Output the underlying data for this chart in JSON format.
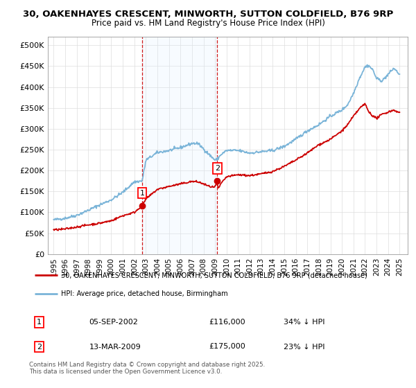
{
  "title_line1": "30, OAKENHAYES CRESCENT, MINWORTH, SUTTON COLDFIELD, B76 9RP",
  "title_line2": "Price paid vs. HM Land Registry's House Price Index (HPI)",
  "sale1_date": "05-SEP-2002",
  "sale1_price": 116000,
  "sale1_x": 2002.68,
  "sale2_date": "13-MAR-2009",
  "sale2_price": 175000,
  "sale2_x": 2009.19,
  "hpi_color": "#7ab4d8",
  "price_color": "#cc0000",
  "vline_color": "#cc0000",
  "shade_color": "#ddeeff",
  "legend_label_price": "30, OAKENHAYES CRESCENT, MINWORTH, SUTTON COLDFIELD, B76 9RP (detached house)",
  "legend_label_hpi": "HPI: Average price, detached house, Birmingham",
  "footer": "Contains HM Land Registry data © Crown copyright and database right 2025.\nThis data is licensed under the Open Government Licence v3.0.",
  "ylim": [
    0,
    520000
  ],
  "xlim_start": 1994.5,
  "xlim_end": 2025.7,
  "yticks": [
    0,
    50000,
    100000,
    150000,
    200000,
    250000,
    300000,
    350000,
    400000,
    450000,
    500000
  ],
  "ytick_labels": [
    "£0",
    "£50K",
    "£100K",
    "£150K",
    "£200K",
    "£250K",
    "£300K",
    "£350K",
    "£400K",
    "£450K",
    "£500K"
  ],
  "xticks": [
    1995,
    1996,
    1997,
    1998,
    1999,
    2000,
    2001,
    2002,
    2003,
    2004,
    2005,
    2006,
    2007,
    2008,
    2009,
    2010,
    2011,
    2012,
    2013,
    2014,
    2015,
    2016,
    2017,
    2018,
    2019,
    2020,
    2021,
    2022,
    2023,
    2024,
    2025
  ],
  "background_color": "#ffffff",
  "grid_color": "#dddddd",
  "hpi_keypoints_x": [
    1995,
    1996,
    1997,
    1998,
    1999,
    2000,
    2001,
    2002,
    2002.68,
    2003,
    2004,
    2005,
    2006,
    2007,
    2007.5,
    2008,
    2008.5,
    2009,
    2009.19,
    2009.5,
    2010,
    2011,
    2012,
    2013,
    2014,
    2015,
    2016,
    2017,
    2018,
    2019,
    2020,
    2020.5,
    2021,
    2021.5,
    2022,
    2022.3,
    2022.7,
    2023,
    2023.5,
    2024,
    2024.5,
    2025
  ],
  "hpi_keypoints_y": [
    82000,
    86000,
    93000,
    105000,
    118000,
    130000,
    148000,
    173000,
    175000,
    225000,
    243000,
    248000,
    255000,
    265000,
    265000,
    252000,
    238000,
    225000,
    227000,
    238000,
    248000,
    248000,
    242000,
    245000,
    248000,
    258000,
    275000,
    295000,
    310000,
    330000,
    345000,
    358000,
    385000,
    420000,
    448000,
    452000,
    440000,
    420000,
    415000,
    430000,
    445000,
    430000
  ],
  "price_keypoints_x": [
    1995,
    1996,
    1997,
    1998,
    1999,
    2000,
    2001,
    2002,
    2002.3,
    2002.68,
    2003,
    2004,
    2005,
    2006,
    2007,
    2007.5,
    2008,
    2008.5,
    2009,
    2009.19,
    2009.25,
    2009.5,
    2010,
    2011,
    2012,
    2013,
    2014,
    2015,
    2016,
    2017,
    2018,
    2018.5,
    2019,
    2020,
    2020.5,
    2021,
    2021.5,
    2022,
    2022.3,
    2022.7,
    2023,
    2023.5,
    2024,
    2024.5,
    2025
  ],
  "price_keypoints_y": [
    58000,
    60000,
    65000,
    70000,
    74000,
    80000,
    92000,
    100000,
    107000,
    116000,
    132000,
    155000,
    162000,
    168000,
    174000,
    173000,
    168000,
    162000,
    160000,
    175000,
    155000,
    168000,
    185000,
    190000,
    188000,
    192000,
    198000,
    210000,
    225000,
    242000,
    262000,
    268000,
    275000,
    295000,
    310000,
    330000,
    348000,
    360000,
    342000,
    330000,
    325000,
    335000,
    340000,
    345000,
    338000
  ]
}
